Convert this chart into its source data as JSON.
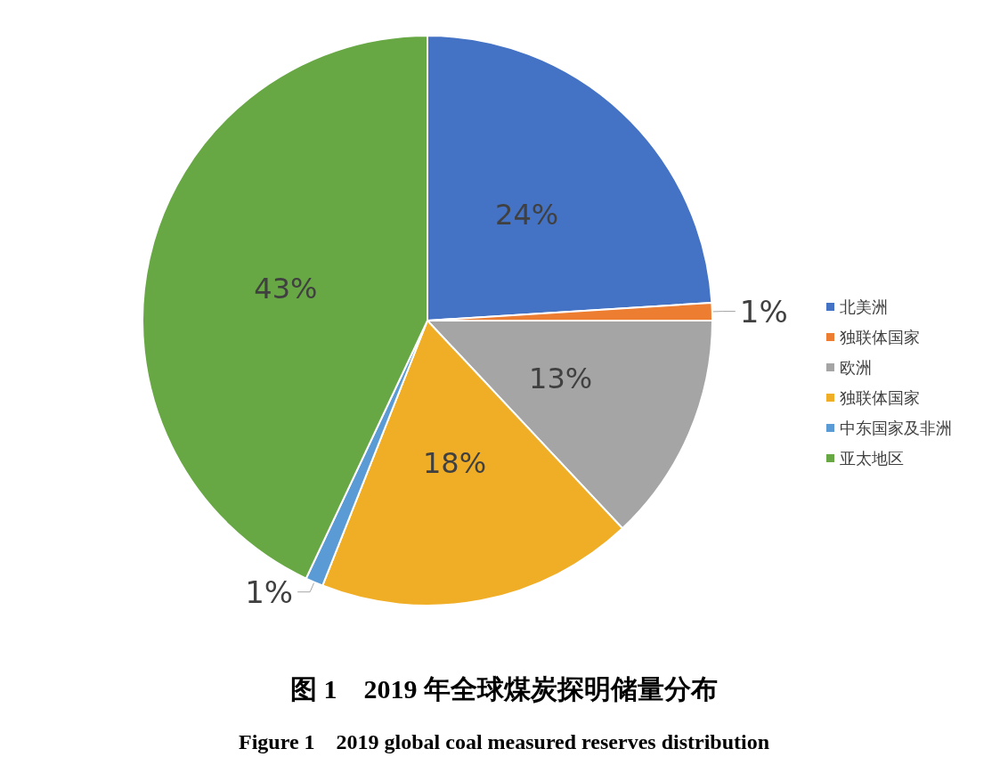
{
  "chart_data": {
    "type": "pie",
    "title": "图 1　2019 年全球煤炭探明储量分布",
    "subtitle": "Figure 1　2019 global coal measured reserves distribution",
    "categories": [
      "北美洲",
      "独联体国家",
      "欧洲",
      "独联体国家",
      "中东国家及非洲",
      "亚太地区"
    ],
    "values": [
      24,
      1,
      13,
      18,
      1,
      43
    ],
    "value_labels": [
      "24%",
      "1%",
      "13%",
      "18%",
      "1%",
      "43%"
    ],
    "colors": [
      "#4472c4",
      "#ed7d31",
      "#a5a5a5",
      "#f0ae26",
      "#5b9bd5",
      "#67a844"
    ],
    "legend": "right"
  }
}
